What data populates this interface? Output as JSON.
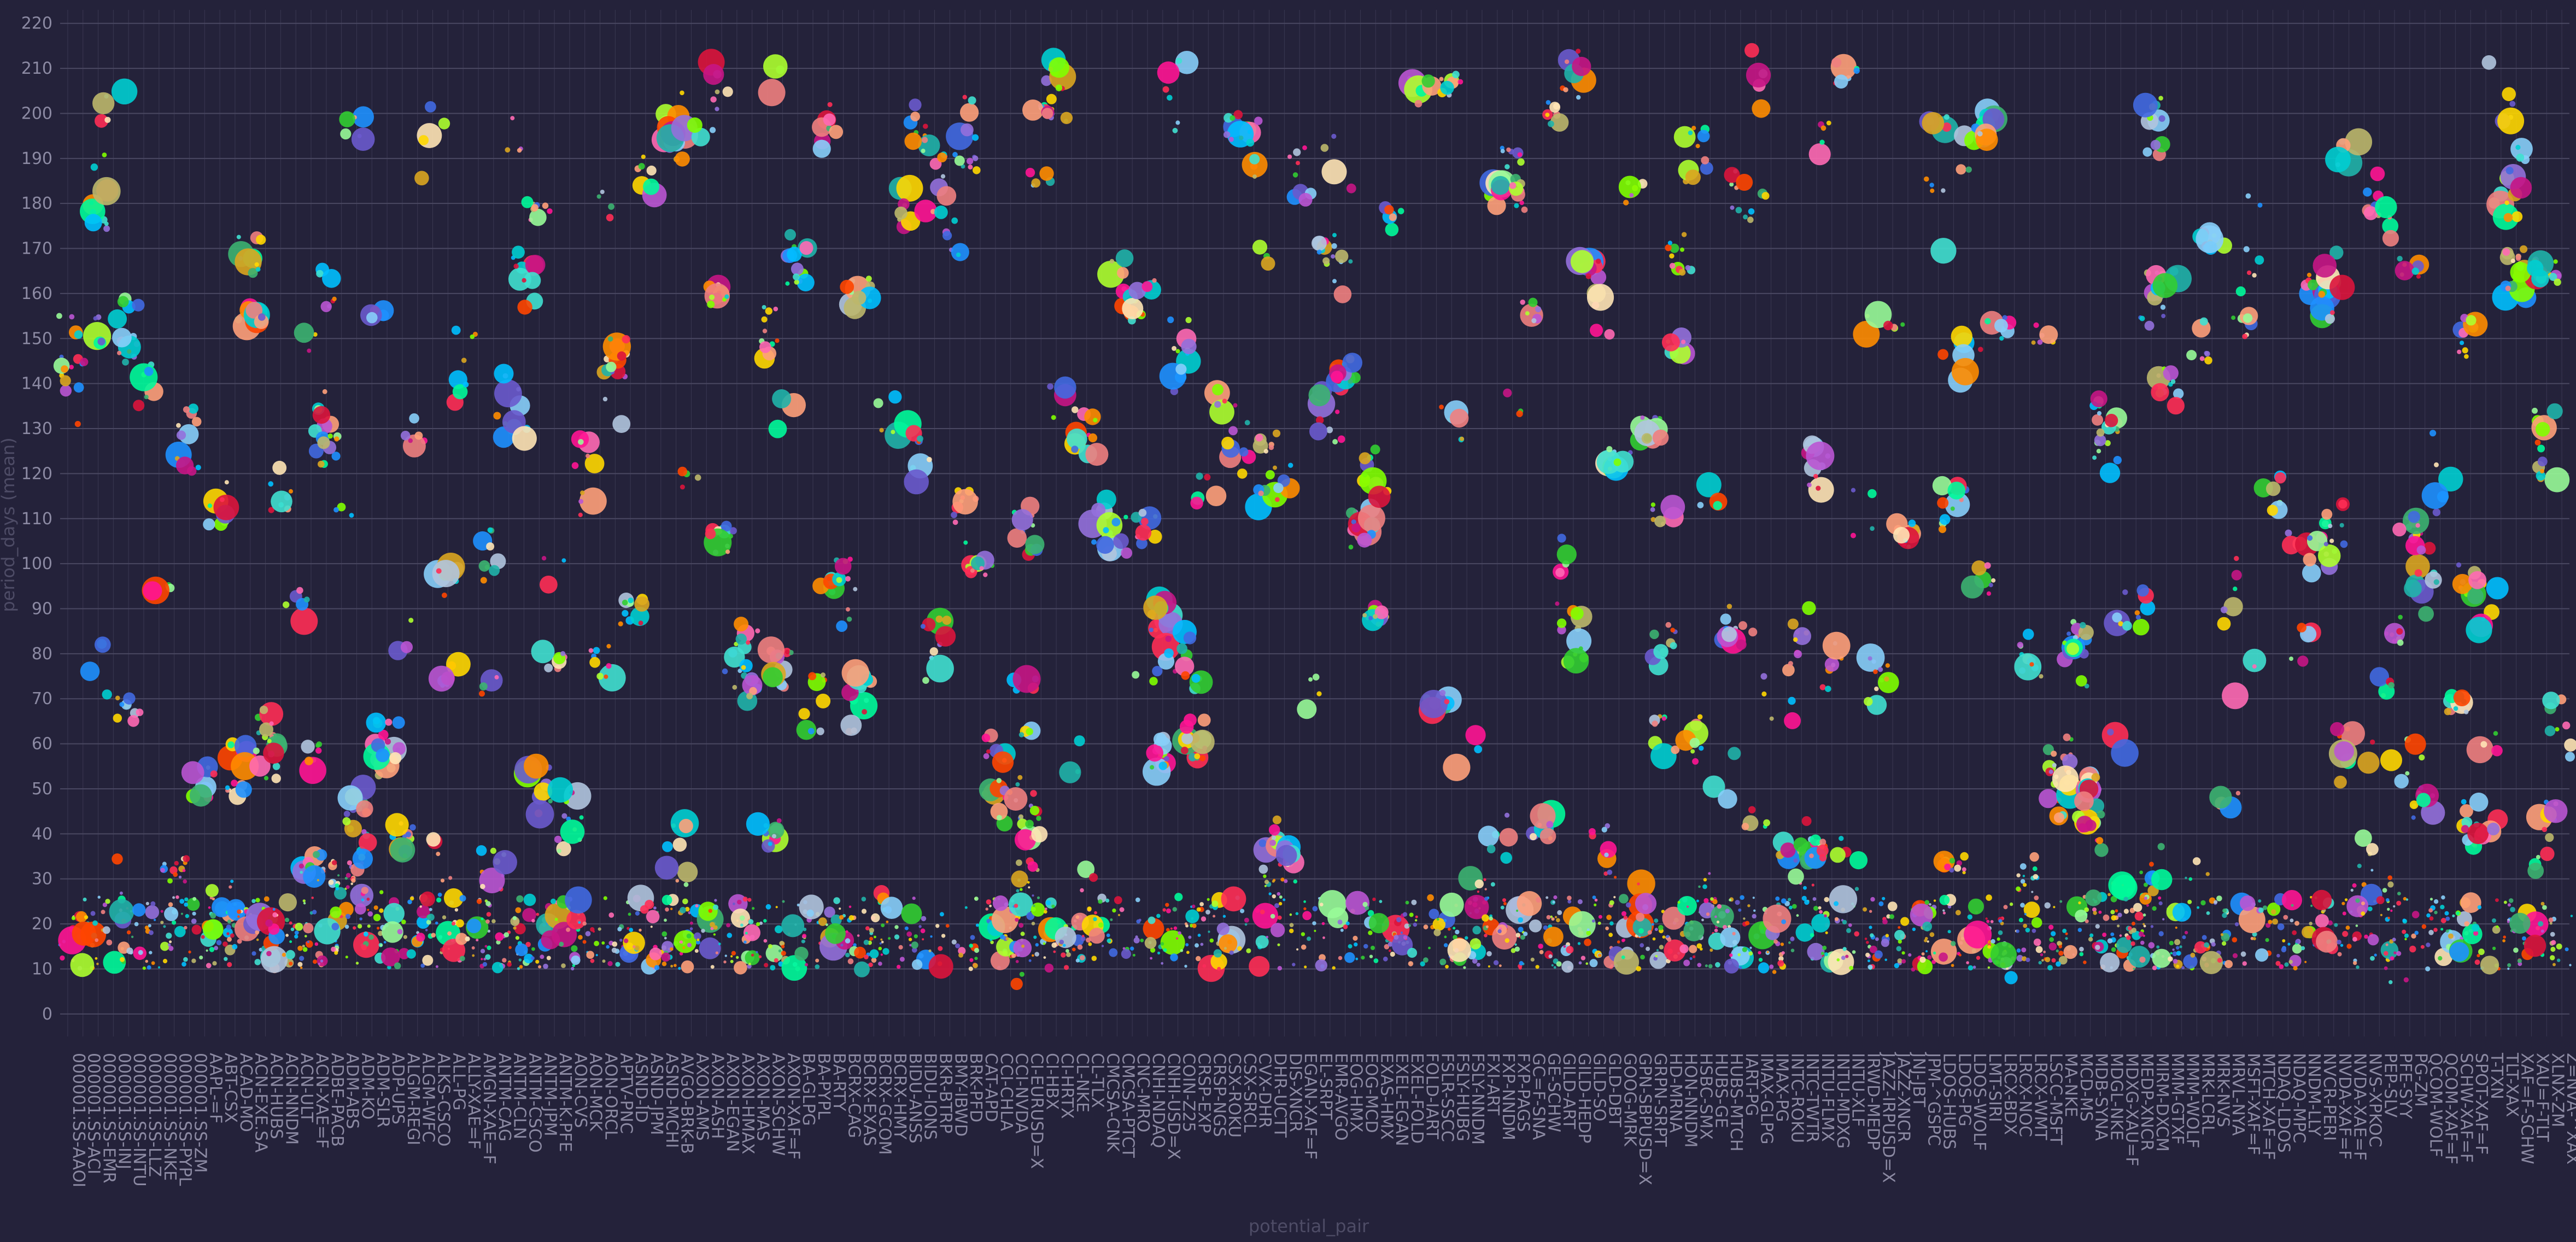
{
  "chart_data": {
    "type": "scatter",
    "xlabel": "potential_pair",
    "ylabel": "period_days (mean)",
    "ylim": [
      -5,
      223
    ],
    "yticks": [
      0,
      10,
      20,
      30,
      40,
      50,
      60,
      70,
      80,
      90,
      100,
      110,
      120,
      130,
      140,
      150,
      160,
      170,
      180,
      190,
      200,
      210,
      220
    ],
    "grid": true,
    "colors": {
      "background": "#24223a",
      "grid": "#4a4862",
      "tick_text": "#8c8aa3",
      "axis_title": "#4e4c66"
    },
    "palette": [
      "#ff2d55",
      "#40e0d0",
      "#7fff00",
      "#ff8c00",
      "#9370db",
      "#1e90ff",
      "#ffd700",
      "#ff69b4",
      "#00fa9a",
      "#ff4500",
      "#ba55d3",
      "#00ced1",
      "#adff2f",
      "#f08080",
      "#4169e1",
      "#3cb371",
      "#dc143c",
      "#20b2aa",
      "#daa520",
      "#c71585",
      "#87cefa",
      "#98fb98",
      "#ff1493",
      "#ffa07a",
      "#b0c4de",
      "#bdb76b",
      "#6a5acd",
      "#ffe4b5",
      "#00bfff",
      "#32cd32"
    ],
    "categories": [
      "000001.SS-AAOI",
      "000001.SS-ACI",
      "000001.SS-EMR",
      "000001.SS-INJ",
      "000001.SS-INTU",
      "000001.SS-LLZ",
      "000001.SS-NKE",
      "000001.SS-PYPL",
      "000001.SS-ZM",
      "AAPL-=F",
      "ABT-CSX",
      "ACAD-MO",
      "ACN-EXE.SA",
      "ACN-HUBS",
      "ACN-NNDM",
      "ACN-ULT",
      "ACN-XAE=F",
      "ADBE-PACB",
      "ADM-ABS",
      "ADM-KO",
      "ADM-SLR",
      "ADP-UPS",
      "ALGM-REGI",
      "ALGM-WFC",
      "ALKS-CSCO",
      "ALL-PG",
      "ALLY-XAE=F",
      "AMGN-XAE=F",
      "ANTM-CAG",
      "ANTM-CLN",
      "ANTM-CSCO",
      "ANTM-JPM",
      "ANTM-K.PFE",
      "AON-CVS",
      "AON-MCK",
      "AON-ORCL",
      "APTV-PNC",
      "ASND-ID",
      "ASND-JPM",
      "ASND-MCHI",
      "AVGO-BRK-B",
      "AXON-AMS",
      "AXON-ASH",
      "AXON-EGAN",
      "AXON-HMAX",
      "AXON-MAS",
      "AXON-SCHW",
      "AXON-XAF=F",
      "BA-GLPG",
      "BA-PYPL",
      "BA-RTY",
      "BCRX-CAG",
      "BCRX-EXAS",
      "BCRX-GCOM",
      "BCRX-HMY",
      "BIDU-ANSS",
      "BIDU-IONS",
      "BKR-BTRP",
      "BMY-IBWD",
      "BRK-PFD",
      "CAT-APD",
      "CCI-CHLA",
      "CCI-NVDA",
      "CI-EURUSD=X",
      "CI-HBX",
      "CI-HRTX",
      "CL-NKE",
      "CL-TLX",
      "CMCSA-CNK",
      "CMCSA-PTCT",
      "CNC-MRO",
      "CNHI-NDAQ",
      "CNHI-USD=X",
      "COIN-Z25",
      "CRSP-EXP",
      "CRSP-NGS",
      "CSX-ROKU",
      "CSX-SRCL",
      "CVX-DHR",
      "DHR-UCTT",
      "DIS-XNCR",
      "EGAN-XAF=F",
      "EL-SRPT",
      "EMR-AVGO",
      "EOG-HMX",
      "EOG-MCD",
      "EXAS-HMX",
      "EXEL-EGAN",
      "EXEL-FOLD",
      "FOLD-IART",
      "FSLR-SSCC",
      "FSLY-HUBG",
      "FSLY-NNDM",
      "FXI-ART",
      "FXP-NNDM",
      "FXP-PAGS",
      "GC=F-SNA",
      "GE-SCHW",
      "GILD-ART",
      "GILD-HEDP",
      "GILD-SO",
      "GLD-DBT",
      "GOOG-MRK",
      "GPN-SBPUSD=X",
      "GRPN-SRPT",
      "HD-MRNA",
      "HON-NNDM",
      "HSBC-SMX",
      "HUBS-GE",
      "HUBS-MTCH",
      "IART-PG",
      "IMAX-GLPG",
      "IMAX-PG",
      "INTC-ROKU",
      "INTC-TWTR",
      "INTU-FLMX",
      "INTU-MDXG",
      "INTU-XLF",
      "IRWD-MEDP",
      "JAZZ-IRPUSD=X",
      "JAZZ-XNCR",
      "JNJ-JBT",
      "JPM-^GSPC",
      "LDOS-HUBS",
      "LDOS-PG",
      "LDOS-WOLF",
      "LMT-SIRI",
      "LRCX-BDX",
      "LRCX-NOC",
      "LRCX-WMT",
      "LSCC-MSFT",
      "MA-NKE",
      "MCD-MS",
      "MDB-SYNA",
      "MDGL-NKE",
      "MDXG-XAU=F",
      "MEDP-XNCR",
      "MIRM-DXCM",
      "MMM-GTXF",
      "MMM-WOLF",
      "MRK-LCRL",
      "MRK-NVS",
      "MRVL-NYA",
      "MSFT-XAF=F",
      "MTCH-XAF=F",
      "NDAQ-LDOS",
      "NDAQ-MPC",
      "NNDM-LLY",
      "NVCR-PERI",
      "NVDA-XAF=F",
      "NVDA-XAE=F",
      "NVS-XPKOC",
      "PEP-SLV",
      "PFE-SYY",
      "PG-ZM",
      "QCOM-WOLF",
      "QCOM-XAF=F",
      "SCHW-XAF=F",
      "SPOT-XAF=F",
      "T-TXN",
      "TLT-XAX",
      "XAF=F-SCHW",
      "XAU=F-TLT",
      "XLNX-ZM",
      "Z=NVA-^XAX"
    ]
  }
}
